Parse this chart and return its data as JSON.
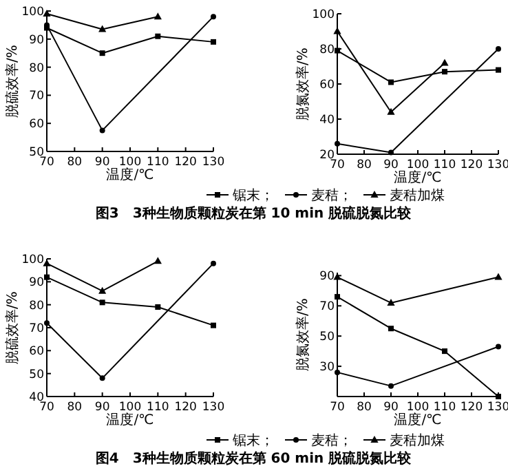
{
  "chart_data": [
    {
      "type": "line",
      "xlabel": "温度/℃",
      "ylabel": "脱硫效率/%",
      "xlim": [
        70,
        130
      ],
      "xticks": [
        70,
        80,
        90,
        100,
        110,
        120,
        130
      ],
      "ylim": [
        50,
        100
      ],
      "yticks": [
        50,
        60,
        70,
        80,
        90,
        100
      ],
      "legend": "bottom",
      "annotations": [
        "图3　3种生物质颗粒炭在第 10 min 脱硫脱氮比较"
      ],
      "series": [
        {
          "name": "锯末；",
          "color": "#000000",
          "marker": "square",
          "x": [
            70,
            90,
            110,
            130
          ],
          "values": [
            94,
            85,
            91,
            89
          ]
        },
        {
          "name": "麦秸；",
          "color": "#000000",
          "marker": "circle",
          "x": [
            70,
            90,
            130
          ],
          "values": [
            95,
            57.5,
            98
          ]
        },
        {
          "name": "麦秸加煤",
          "color": "#000000",
          "marker": "triangle",
          "x": [
            70,
            90,
            110
          ],
          "values": [
            99,
            93.5,
            98
          ]
        }
      ]
    },
    {
      "type": "line",
      "xlabel": "温度/℃",
      "ylabel": "脱氮效率/%",
      "xlim": [
        70,
        130
      ],
      "xticks": [
        70,
        80,
        90,
        100,
        110,
        120,
        130
      ],
      "ylim": [
        20,
        100
      ],
      "yticks": [
        20,
        40,
        60,
        80,
        100
      ],
      "series": [
        {
          "color": "#000000",
          "marker": "square",
          "x": [
            70,
            90,
            110,
            130
          ],
          "values": [
            79,
            61,
            67,
            68
          ]
        },
        {
          "color": "#000000",
          "marker": "circle",
          "x": [
            70,
            90,
            130
          ],
          "values": [
            26,
            21,
            80
          ]
        },
        {
          "color": "#000000",
          "marker": "triangle",
          "x": [
            70,
            90,
            110
          ],
          "values": [
            90,
            44,
            72
          ]
        }
      ]
    },
    {
      "type": "line",
      "xlabel": "温度/℃",
      "ylabel": "脱硫效率/%",
      "xlim": [
        70,
        130
      ],
      "xticks": [
        70,
        80,
        90,
        100,
        110,
        120,
        130
      ],
      "ylim": [
        40,
        100
      ],
      "yticks": [
        40,
        50,
        60,
        70,
        80,
        90,
        100
      ],
      "legend": "bottom",
      "annotations": [
        "图4　3种生物质颗粒炭在第 60 min 脱硫脱氮比较"
      ],
      "series": [
        {
          "name": "锯末；",
          "color": "#000000",
          "marker": "square",
          "x": [
            70,
            90,
            110,
            130
          ],
          "values": [
            92,
            81,
            79,
            71
          ]
        },
        {
          "name": "麦秸；",
          "color": "#000000",
          "marker": "circle",
          "x": [
            70,
            90,
            130
          ],
          "values": [
            72,
            48,
            98
          ]
        },
        {
          "name": "麦秸加煤",
          "color": "#000000",
          "marker": "triangle",
          "x": [
            70,
            90,
            110
          ],
          "values": [
            98,
            86,
            99
          ]
        }
      ]
    },
    {
      "type": "line",
      "xlabel": "温度/℃",
      "ylabel": "脱氮效率/%",
      "xlim": [
        70,
        130
      ],
      "xticks": [
        70,
        80,
        90,
        100,
        110,
        120,
        130
      ],
      "ylim": [
        10,
        92
      ],
      "yticks": [
        {
          "value": 10,
          "label": null
        },
        30,
        50,
        70,
        90
      ],
      "series": [
        {
          "color": "#000000",
          "marker": "square",
          "x": [
            70,
            90,
            110,
            130
          ],
          "values": [
            76,
            55,
            40,
            10
          ]
        },
        {
          "color": "#000000",
          "marker": "circle",
          "x": [
            70,
            90,
            130
          ],
          "values": [
            26,
            17,
            43
          ]
        },
        {
          "color": "#000000",
          "marker": "triangle",
          "x": [
            70,
            90,
            130
          ],
          "values": [
            89,
            72,
            89
          ]
        }
      ]
    }
  ]
}
